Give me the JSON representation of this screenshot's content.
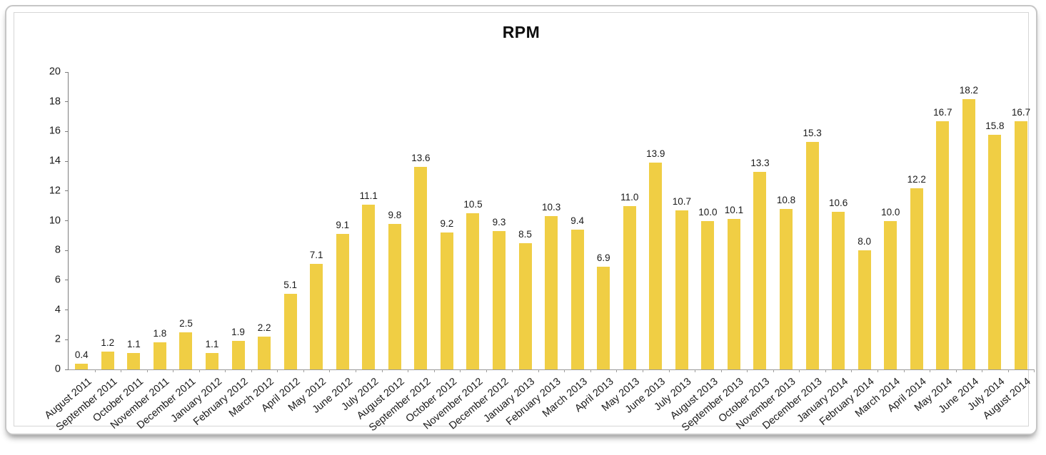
{
  "chart_data": {
    "type": "bar",
    "title": "RPM",
    "categories": [
      "August 2011",
      "September 2011",
      "October 2011",
      "November 2011",
      "December 2011",
      "January 2012",
      "February 2012",
      "March 2012",
      "April 2012",
      "May 2012",
      "June 2012",
      "July 2012",
      "August 2012",
      "September 2012",
      "October 2012",
      "November 2012",
      "December 2012",
      "January 2013",
      "February 2013",
      "March 2013",
      "April 2013",
      "May 2013",
      "June 2013",
      "July 2013",
      "August 2013",
      "September 2013",
      "October 2013",
      "November 2013",
      "December 2013",
      "January 2014",
      "February 2014",
      "March 2014",
      "April 2014",
      "May 2014",
      "June 2014",
      "July 2014",
      "August 2014"
    ],
    "values": [
      0.4,
      1.2,
      1.1,
      1.8,
      2.5,
      1.1,
      1.9,
      2.2,
      5.1,
      7.1,
      9.1,
      11.1,
      9.8,
      13.6,
      9.2,
      10.5,
      9.3,
      8.5,
      10.3,
      9.4,
      6.9,
      11.0,
      13.9,
      10.7,
      10.0,
      10.1,
      13.3,
      10.8,
      15.3,
      10.6,
      8.0,
      10.0,
      12.2,
      16.7,
      18.2,
      15.8,
      16.7
    ],
    "value_labels": [
      "0.4",
      "1.2",
      "1.1",
      "1.8",
      "2.5",
      "1.1",
      "1.9",
      "2.2",
      "5.1",
      "7.1",
      "9.1",
      "11.1",
      "9.8",
      "13.6",
      "9.2",
      "10.5",
      "9.3",
      "8.5",
      "10.3",
      "9.4",
      "6.9",
      "11.0",
      "13.9",
      "10.7",
      "10.0",
      "10.1",
      "13.3",
      "10.8",
      "15.3",
      "10.6",
      "8.0",
      "10.0",
      "12.2",
      "16.7",
      "18.2",
      "15.8",
      "16.7"
    ],
    "xlabel": "",
    "ylabel": "",
    "ylim": [
      0,
      20
    ],
    "ytick_step": 2,
    "grid": false,
    "legend": false,
    "bar_color": "#F0CE44",
    "axis_color": "#7d7d7d",
    "text_color": "#1a1a1a"
  }
}
